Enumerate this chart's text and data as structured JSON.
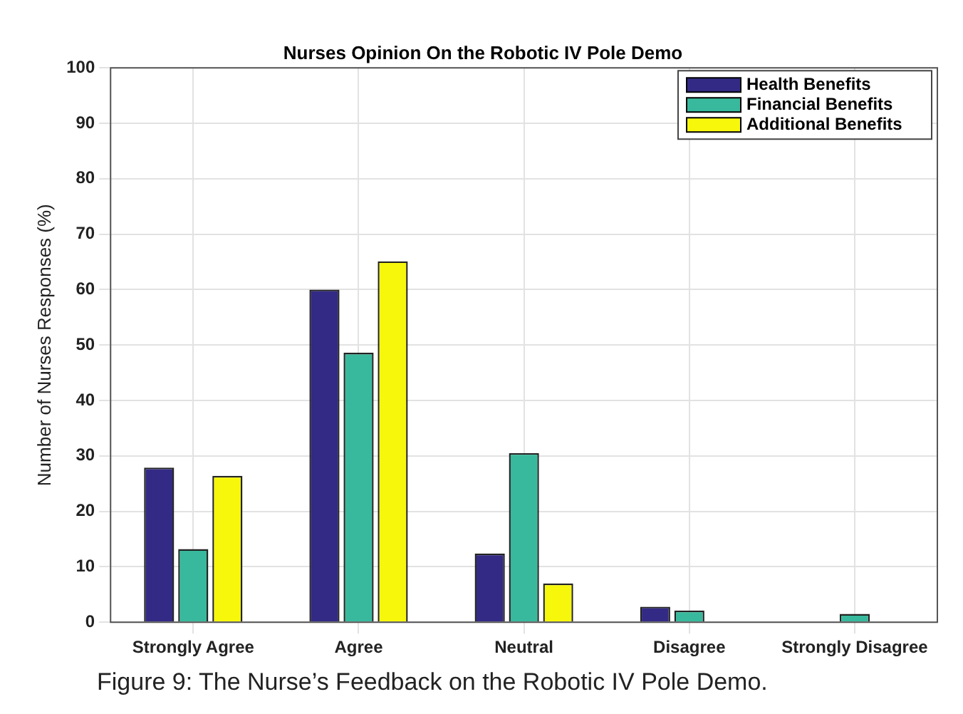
{
  "chart_data": {
    "type": "bar",
    "title": "Nurses Opinion On the Robotic IV Pole Demo",
    "ylabel": "Number of Nurses Responses (%)",
    "categories": [
      "Strongly Agree",
      "Agree",
      "Neutral",
      "Disagree",
      "Strongly Disagree"
    ],
    "series": [
      {
        "name": "Health Benefits",
        "color": "#332a85",
        "values": [
          27.9,
          60,
          12.4,
          2.8,
          0
        ]
      },
      {
        "name": "Financial Benefits",
        "color": "#38b99d",
        "values": [
          13.2,
          48.6,
          30.5,
          2.1,
          1.5
        ]
      },
      {
        "name": "Additional Benefits",
        "color": "#f7f70c",
        "values": [
          26.4,
          65.1,
          7,
          0,
          0
        ]
      }
    ],
    "ylim": [
      0,
      100
    ],
    "yticks": [
      0,
      10,
      20,
      30,
      40,
      50,
      60,
      70,
      80,
      90,
      100
    ],
    "grid": true,
    "legend": "top right",
    "annotations": [
      "Figure 9: The Nurse’s Feedback on the Robotic IV Pole Demo."
    ]
  }
}
